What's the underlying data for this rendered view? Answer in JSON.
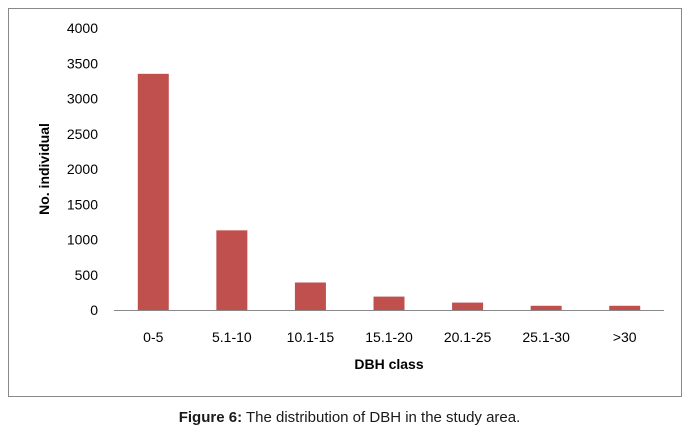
{
  "chart_data": {
    "type": "bar",
    "categories": [
      "0-5",
      "5.1-10",
      "10.1-15",
      "15.1-20",
      "20.1-25",
      "25.1-30",
      ">30"
    ],
    "values": [
      3350,
      1130,
      390,
      190,
      105,
      60,
      60
    ],
    "xlabel": "DBH class",
    "ylabel": "No. individual",
    "ylim": [
      0,
      4000
    ],
    "yticks": [
      0,
      500,
      1000,
      1500,
      2000,
      2500,
      3000,
      3500,
      4000
    ],
    "bar_color": "#c0504d",
    "grid": false,
    "legend": "none"
  },
  "caption": {
    "label": "Figure 6:",
    "text": " The distribution of DBH in the study area."
  }
}
